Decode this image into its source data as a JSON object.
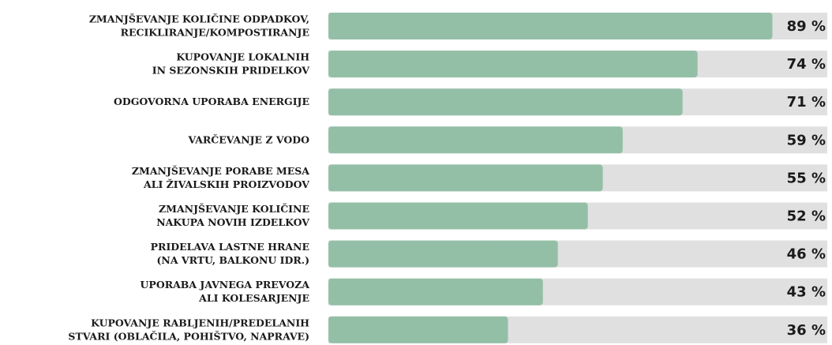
{
  "chart_data": {
    "type": "bar",
    "categories": [
      "ZMANJŠEVANJE KOLIČINE ODPADKOV,\nRECIKLIRANJE/KOMPOSTIRANJE",
      "KUPOVANJE LOKALNIH\nIN SEZONSKIH PRIDELKOV",
      "ODGOVORNA UPORABA ENERGIJE",
      "VARČEVANJE Z VODO",
      "ZMANJŠEVANJE PORABE MESA\nALI ŽIVALSKIH PROIZVODOV",
      "ZMANJŠEVANJE KOLIČINE\nNAKUPA NOVIH IZDELKOV",
      "PRIDELAVA LASTNE HRANE\n(NA VRTU, BALKONU IDR.)",
      "UPORABA JAVNEGA PREVOZA\nALI KOLESARJENJE",
      "KUPOVANJE RABLJENIH/PREDELANIH\nSTVARI (OBLAČILA, POHIŠTVO, NAPRAVE)"
    ],
    "values": [
      89,
      74,
      71,
      59,
      55,
      52,
      46,
      43,
      36
    ],
    "value_labels": [
      "89 %",
      "74 %",
      "71 %",
      "59 %",
      "55 %",
      "52 %",
      "46 %",
      "43 %",
      "36 %"
    ],
    "color": "#94bfa7",
    "track_color": "#e0e0e0",
    "xlim": [
      0,
      100
    ]
  }
}
